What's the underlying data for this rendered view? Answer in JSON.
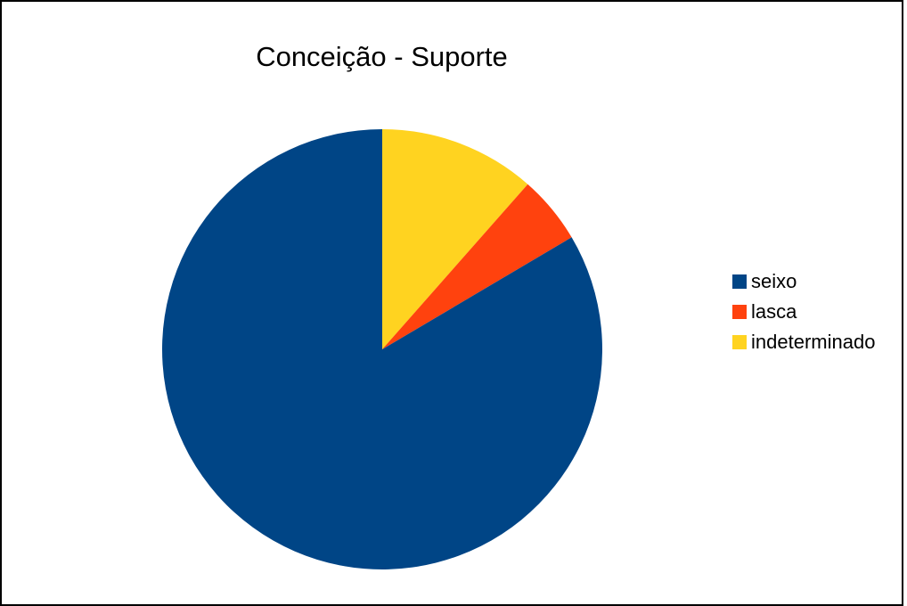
{
  "chart_data": {
    "type": "pie",
    "title": "Conceição - Suporte",
    "legend_position": "right",
    "slices": [
      {
        "label": "seixo",
        "value": 83.5,
        "color": "#004586"
      },
      {
        "label": "lasca",
        "value": 5.0,
        "color": "#ff420e"
      },
      {
        "label": "indeterminado",
        "value": 11.5,
        "color": "#ffd320"
      }
    ]
  }
}
